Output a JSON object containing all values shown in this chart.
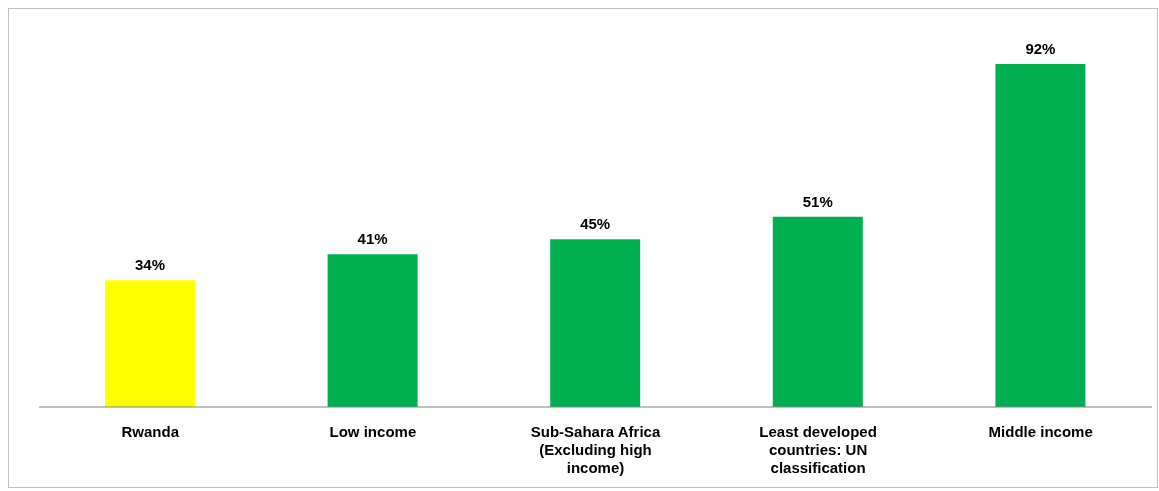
{
  "chart_data": {
    "type": "bar",
    "categories": [
      "Rwanda",
      "Low income",
      "Sub-Sahara Africa (Excluding high income)",
      "Least developed countries: UN classification",
      "Middle income"
    ],
    "values": [
      34,
      41,
      45,
      51,
      92
    ],
    "colors": [
      "#ffff00",
      "#00b050",
      "#00b050",
      "#00b050",
      "#00b050"
    ],
    "value_labels": [
      "34%",
      "41%",
      "45%",
      "51%",
      "92%"
    ],
    "grid": false,
    "legend": false
  }
}
